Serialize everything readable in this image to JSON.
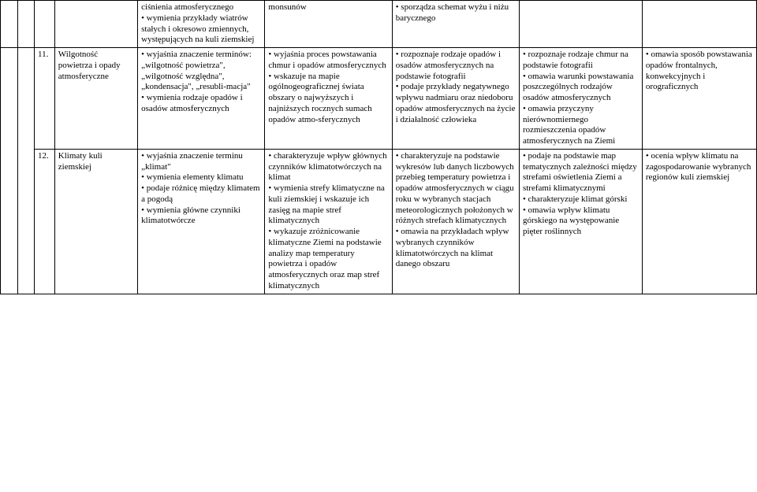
{
  "row_top": {
    "col4": "ciśnienia atmosferycznego\n• wymienia przykłady wiatrów stałych i okresowo zmiennych, występujących na kuli ziemskiej",
    "col5": "monsunów",
    "col6": "• sporządza schemat wyżu i niżu barycznego",
    "col7": "",
    "col8": ""
  },
  "row_11": {
    "num": "11.",
    "topic": "Wilgotność powietrza i opady atmosferyczne",
    "col4": "• wyjaśnia znaczenie terminów: „wilgotność powietrza\", „wilgotność względna\", „kondensacja\", „resubli-macja\"\n• wymienia rodzaje opadów i osadów atmosferycznych",
    "col5": "• wyjaśnia proces powstawania chmur i opadów atmosferycznych\n• wskazuje na mapie ogólnogeograficznej świata obszary o najwyższych i najniższych rocznych sumach opadów atmo-sferycznych",
    "col6": "• rozpoznaje rodzaje opadów i osadów atmosferycznych na podstawie fotografii\n• podaje przykłady negatywnego wpływu nadmiaru oraz niedoboru opadów atmosferycznych na życie i działalność człowieka",
    "col7": "• rozpoznaje rodzaje chmur na podstawie fotografii\n• omawia warunki powstawania poszczególnych rodzajów osadów atmosferycznych\n• omawia przyczyny nierównomiernego rozmieszczenia opadów atmosferycznych na Ziemi",
    "col8": "• omawia sposób powstawania opadów frontalnych, konwekcyjnych i orograficznych"
  },
  "row_12": {
    "num": "12.",
    "topic": "Klimaty kuli ziemskiej",
    "col4": "• wyjaśnia znaczenie terminu „klimat\"\n• wymienia elementy klimatu\n• podaje różnicę między klimatem a pogodą\n• wymienia główne czynniki klimatotwórcze",
    "col5": "• charakteryzuje wpływ głównych czynników klimatotwórczych na klimat\n• wymienia strefy klimatyczne na kuli ziemskiej i wskazuje ich zasięg na mapie stref klimatycznych\n• wykazuje zróżnicowanie klimatyczne Ziemi na podstawie analizy map temperatury powietrza i opadów atmosferycznych oraz map stref klimatycznych",
    "col6": "• charakteryzuje na podstawie wykresów lub danych liczbowych przebieg temperatury powietrza i opadów atmosferycznych w ciągu roku w wybranych stacjach meteorologicznych położonych w różnych strefach klimatycznych\n• omawia na przykładach wpływ wybranych czynników klimatotwórczych na klimat danego obszaru",
    "col7": "• podaje na podstawie map tematycznych zależności między strefami oświetlenia Ziemi a strefami klimatycznymi\n• charakteryzuje klimat górski\n• omawia wpływ klimatu górskiego na występowanie pięter roślinnych",
    "col8": "• ocenia wpływ klimatu na zagospodarowanie wybranych regionów kuli ziemskiej"
  }
}
